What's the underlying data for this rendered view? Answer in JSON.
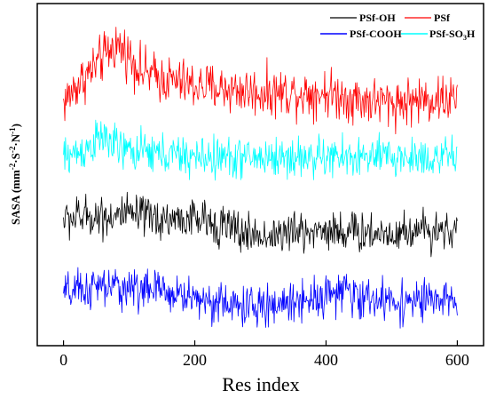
{
  "chart_data": {
    "type": "line",
    "xlabel": "Res index",
    "ylabel": "SASA (mm·S⁻²·N⁻¹)",
    "ylabel_parts": {
      "base": "SASA (mm",
      "sup1": "-2",
      "mid1": "S",
      "mid2": "N",
      "sup2": "-1",
      "close": ")"
    },
    "xlim": [
      -40,
      640
    ],
    "xticks": [
      0,
      200,
      400,
      600
    ],
    "x_range": [
      0,
      600
    ],
    "y_ticks_shown": false,
    "legend": {
      "placement": "top-right",
      "entries": [
        {
          "name": "PSf-OH",
          "color": "#000000"
        },
        {
          "name": "PSf",
          "color": "#ff0000"
        },
        {
          "name": "PSf-COOH",
          "color": "#0000ff"
        },
        {
          "name": "PSf-SO3H",
          "label_base": "PSf-SO",
          "label_sub": "3",
          "label_tail": "H",
          "color": "#00ffff"
        }
      ]
    },
    "series": [
      {
        "name": "PSf",
        "color": "#ff0000",
        "baseline": [
          [
            0,
            0.71
          ],
          [
            20,
            0.76
          ],
          [
            40,
            0.8
          ],
          [
            60,
            0.84
          ],
          [
            80,
            0.88
          ],
          [
            95,
            0.86
          ],
          [
            120,
            0.8
          ],
          [
            150,
            0.78
          ],
          [
            200,
            0.76
          ],
          [
            250,
            0.75
          ],
          [
            300,
            0.74
          ],
          [
            350,
            0.74
          ],
          [
            400,
            0.74
          ],
          [
            450,
            0.72
          ],
          [
            500,
            0.71
          ],
          [
            550,
            0.72
          ],
          [
            600,
            0.72
          ]
        ],
        "amplitude": 0.035
      },
      {
        "name": "PSf-SO3H",
        "color": "#00ffff",
        "baseline": [
          [
            0,
            0.55
          ],
          [
            30,
            0.57
          ],
          [
            60,
            0.61
          ],
          [
            90,
            0.57
          ],
          [
            150,
            0.56
          ],
          [
            200,
            0.55
          ],
          [
            300,
            0.55
          ],
          [
            400,
            0.55
          ],
          [
            500,
            0.55
          ],
          [
            600,
            0.55
          ]
        ],
        "amplitude": 0.03
      },
      {
        "name": "PSf-OH",
        "color": "#000000",
        "baseline": [
          [
            0,
            0.37
          ],
          [
            50,
            0.38
          ],
          [
            100,
            0.38
          ],
          [
            150,
            0.37
          ],
          [
            200,
            0.37
          ],
          [
            250,
            0.35
          ],
          [
            270,
            0.33
          ],
          [
            300,
            0.32
          ],
          [
            350,
            0.33
          ],
          [
            400,
            0.34
          ],
          [
            450,
            0.33
          ],
          [
            500,
            0.33
          ],
          [
            550,
            0.34
          ],
          [
            600,
            0.34
          ]
        ],
        "amplitude": 0.03
      },
      {
        "name": "PSf-COOH",
        "color": "#0000ff",
        "baseline": [
          [
            0,
            0.15
          ],
          [
            50,
            0.17
          ],
          [
            100,
            0.17
          ],
          [
            150,
            0.16
          ],
          [
            200,
            0.14
          ],
          [
            250,
            0.12
          ],
          [
            300,
            0.11
          ],
          [
            350,
            0.13
          ],
          [
            400,
            0.15
          ],
          [
            420,
            0.16
          ],
          [
            450,
            0.14
          ],
          [
            500,
            0.13
          ],
          [
            550,
            0.13
          ],
          [
            600,
            0.13
          ]
        ],
        "amplitude": 0.03
      }
    ]
  }
}
